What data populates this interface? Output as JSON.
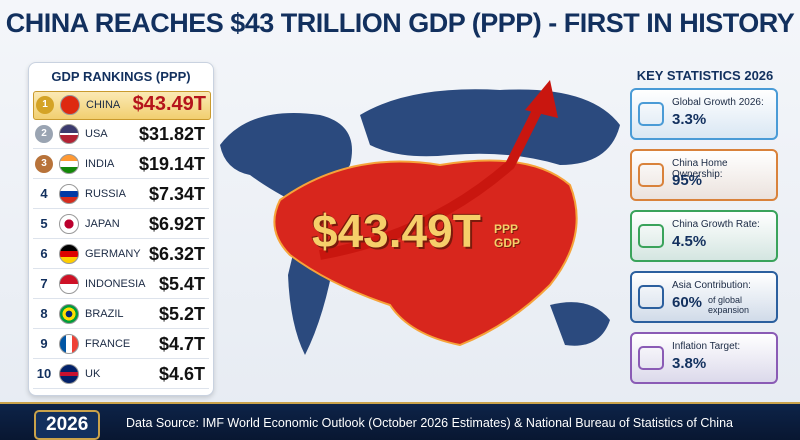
{
  "header": {
    "title": "CHINA REACHES $43 TRILLION GDP (PPP) - FIRST IN HISTORY"
  },
  "rankings": {
    "title": "GDP RANKINGS (PPP)",
    "rows": [
      {
        "rank": "1",
        "country": "CHINA",
        "value": "$43.49T"
      },
      {
        "rank": "2",
        "country": "USA",
        "value": "$31.82T"
      },
      {
        "rank": "3",
        "country": "INDIA",
        "value": "$19.14T"
      },
      {
        "rank": "4",
        "country": "RUSSIA",
        "value": "$7.34T"
      },
      {
        "rank": "5",
        "country": "JAPAN",
        "value": "$6.92T"
      },
      {
        "rank": "6",
        "country": "GERMANY",
        "value": "$6.32T"
      },
      {
        "rank": "7",
        "country": "INDONESIA",
        "value": "$5.4T"
      },
      {
        "rank": "8",
        "country": "BRAZIL",
        "value": "$5.2T"
      },
      {
        "rank": "9",
        "country": "FRANCE",
        "value": "$4.7T"
      },
      {
        "rank": "10",
        "country": "UK",
        "value": "$4.6T"
      }
    ]
  },
  "center": {
    "value": "$43.49T",
    "unit_top": "PPP",
    "unit_bottom": "GDP"
  },
  "statistics": {
    "title": "KEY STATISTICS 2026",
    "cards": [
      {
        "label": "Global Growth 2026:",
        "value": "3.3%"
      },
      {
        "label": "China Home Ownership:",
        "value": "95%"
      },
      {
        "label": "China Growth Rate:",
        "value": "4.5%"
      },
      {
        "label": "Asia Contribution:",
        "value": "60%",
        "note": "of global expansion"
      },
      {
        "label": "Inflation Target:",
        "value": "3.8%"
      }
    ]
  },
  "footer": {
    "year": "2026",
    "source": "Data Source: IMF World Economic Outlook (October 2026 Estimates) & National Bureau of Statistics of China"
  }
}
